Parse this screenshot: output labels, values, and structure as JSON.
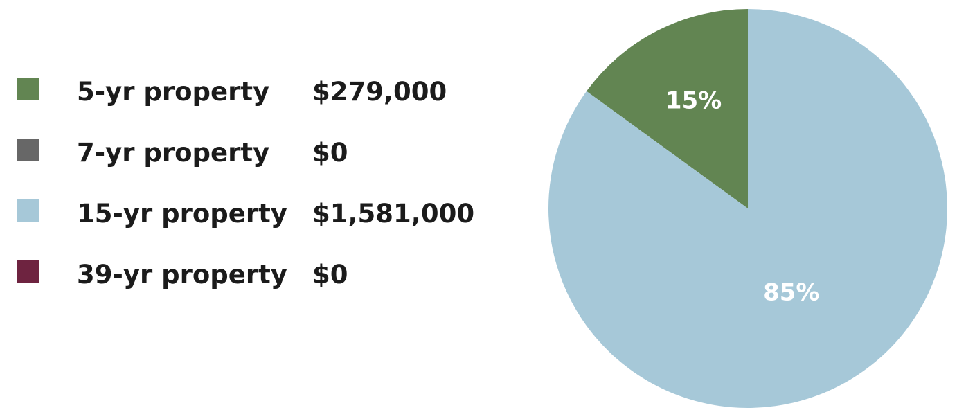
{
  "chart_data": {
    "type": "pie",
    "legend": [
      {
        "label": "5-yr property",
        "value": "$279,000",
        "color": "#628552"
      },
      {
        "label": "7-yr property",
        "value": "$0",
        "color": "#676767"
      },
      {
        "label": "15-yr property",
        "value": "$1,581,000",
        "color": "#a6c8d8"
      },
      {
        "label": "39-yr property",
        "value": "$0",
        "color": "#6e2340"
      }
    ],
    "slices": [
      {
        "category": "5-yr property",
        "value": 279000,
        "label": "15%",
        "color": "#628552"
      },
      {
        "category": "15-yr property",
        "value": 1581000,
        "label": "85%",
        "color": "#a6c8d8"
      }
    ],
    "legend_position": "left"
  }
}
